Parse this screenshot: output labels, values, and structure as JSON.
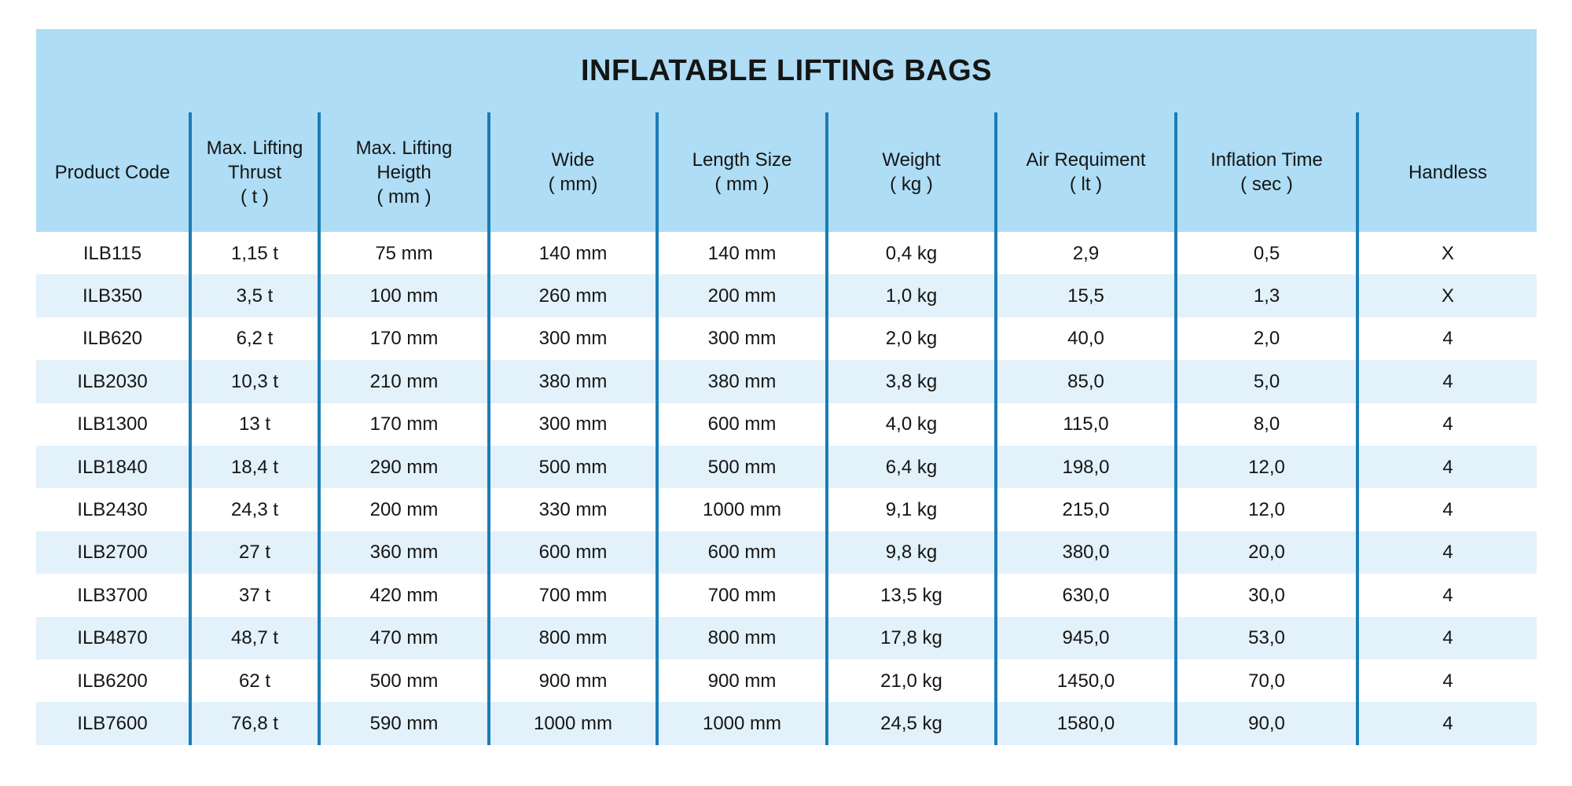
{
  "title": "INFLATABLE LIFTING BAGS",
  "colors": {
    "header_bg": "#aeddf5",
    "row_bg": "#ffffff",
    "row_alt_bg": "#e3f1fb",
    "divider": "#1b7db5",
    "text": "#151515"
  },
  "table": {
    "header_lines": [
      [
        "Product Code"
      ],
      [
        "Max. Lifting",
        "Thrust",
        "( t )"
      ],
      [
        "Max. Lifting",
        "Heigth",
        "( mm )"
      ],
      [
        "Wide",
        "( mm)"
      ],
      [
        "Length Size",
        "( mm )"
      ],
      [
        "Weight",
        "( kg )"
      ],
      [
        "Air Requiment",
        "( lt )"
      ],
      [
        "Inflation Time",
        "( sec )"
      ],
      [
        "Handless"
      ]
    ]
  },
  "chart_data": {
    "type": "table",
    "title": "INFLATABLE LIFTING BAGS",
    "columns": [
      "Product Code",
      "Max. Lifting Thrust ( t )",
      "Max. Lifting Heigth ( mm )",
      "Wide ( mm)",
      "Length Size ( mm )",
      "Weight ( kg )",
      "Air Requiment ( lt )",
      "Inflation Time ( sec )",
      "Handless"
    ],
    "rows": [
      [
        "ILB115",
        "1,15 t",
        "75 mm",
        "140 mm",
        "140 mm",
        "0,4 kg",
        "2,9",
        "0,5",
        "X"
      ],
      [
        "ILB350",
        "3,5 t",
        "100 mm",
        "260 mm",
        "200 mm",
        "1,0 kg",
        "15,5",
        "1,3",
        "X"
      ],
      [
        "ILB620",
        "6,2 t",
        "170 mm",
        "300 mm",
        "300 mm",
        "2,0 kg",
        "40,0",
        "2,0",
        "4"
      ],
      [
        "ILB2030",
        "10,3 t",
        "210 mm",
        "380 mm",
        "380 mm",
        "3,8 kg",
        "85,0",
        "5,0",
        "4"
      ],
      [
        "ILB1300",
        "13 t",
        "170 mm",
        "300 mm",
        "600 mm",
        "4,0 kg",
        "115,0",
        "8,0",
        "4"
      ],
      [
        "ILB1840",
        "18,4 t",
        "290 mm",
        "500 mm",
        "500 mm",
        "6,4 kg",
        "198,0",
        "12,0",
        "4"
      ],
      [
        "ILB2430",
        "24,3 t",
        "200 mm",
        "330 mm",
        "1000 mm",
        "9,1 kg",
        "215,0",
        "12,0",
        "4"
      ],
      [
        "ILB2700",
        "27 t",
        "360 mm",
        "600 mm",
        "600 mm",
        "9,8 kg",
        "380,0",
        "20,0",
        "4"
      ],
      [
        "ILB3700",
        "37 t",
        "420 mm",
        "700 mm",
        "700 mm",
        "13,5 kg",
        "630,0",
        "30,0",
        "4"
      ],
      [
        "ILB4870",
        "48,7 t",
        "470 mm",
        "800 mm",
        "800 mm",
        "17,8 kg",
        "945,0",
        "53,0",
        "4"
      ],
      [
        "ILB6200",
        "62 t",
        "500 mm",
        "900 mm",
        "900 mm",
        "21,0 kg",
        "1450,0",
        "70,0",
        "4"
      ],
      [
        "ILB7600",
        "76,8 t",
        "590 mm",
        "1000 mm",
        "1000 mm",
        "24,5 kg",
        "1580,0",
        "90,0",
        "4"
      ]
    ]
  }
}
